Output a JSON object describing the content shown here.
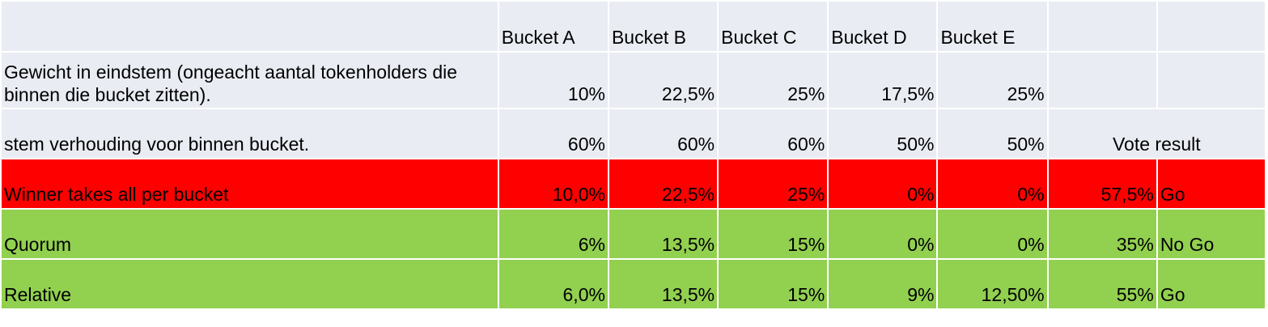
{
  "columns": [
    "Bucket A",
    "Bucket B",
    "Bucket C",
    "Bucket D",
    "Bucket E"
  ],
  "rows": {
    "weight": {
      "label": "Gewicht in eindstem (ongeacht aantal tokenholders die binnen die bucket zitten).",
      "values": [
        "10%",
        "22,5%",
        "25%",
        "17,5%",
        "25%"
      ]
    },
    "ratio": {
      "label": "stem verhouding voor binnen bucket.",
      "values": [
        "60%",
        "60%",
        "60%",
        "50%",
        "50%"
      ],
      "result_header": "Vote result"
    },
    "winner": {
      "label": "Winner takes all per bucket",
      "values": [
        "10,0%",
        "22,5%",
        "25%",
        "0%",
        "0%"
      ],
      "result": "57,5%",
      "decision": "Go"
    },
    "quorum": {
      "label": "Quorum",
      "values": [
        "6%",
        "13,5%",
        "15%",
        "0%",
        "0%"
      ],
      "result": "35%",
      "decision": "No Go"
    },
    "relative": {
      "label": "Relative",
      "values": [
        "6,0%",
        "13,5%",
        "15%",
        "9%",
        "12,50%"
      ],
      "result": "55%",
      "decision": "Go"
    }
  },
  "colors": {
    "header_bg": "#e9ecf3",
    "red_row": "#ff0000",
    "green_row": "#92d050"
  }
}
